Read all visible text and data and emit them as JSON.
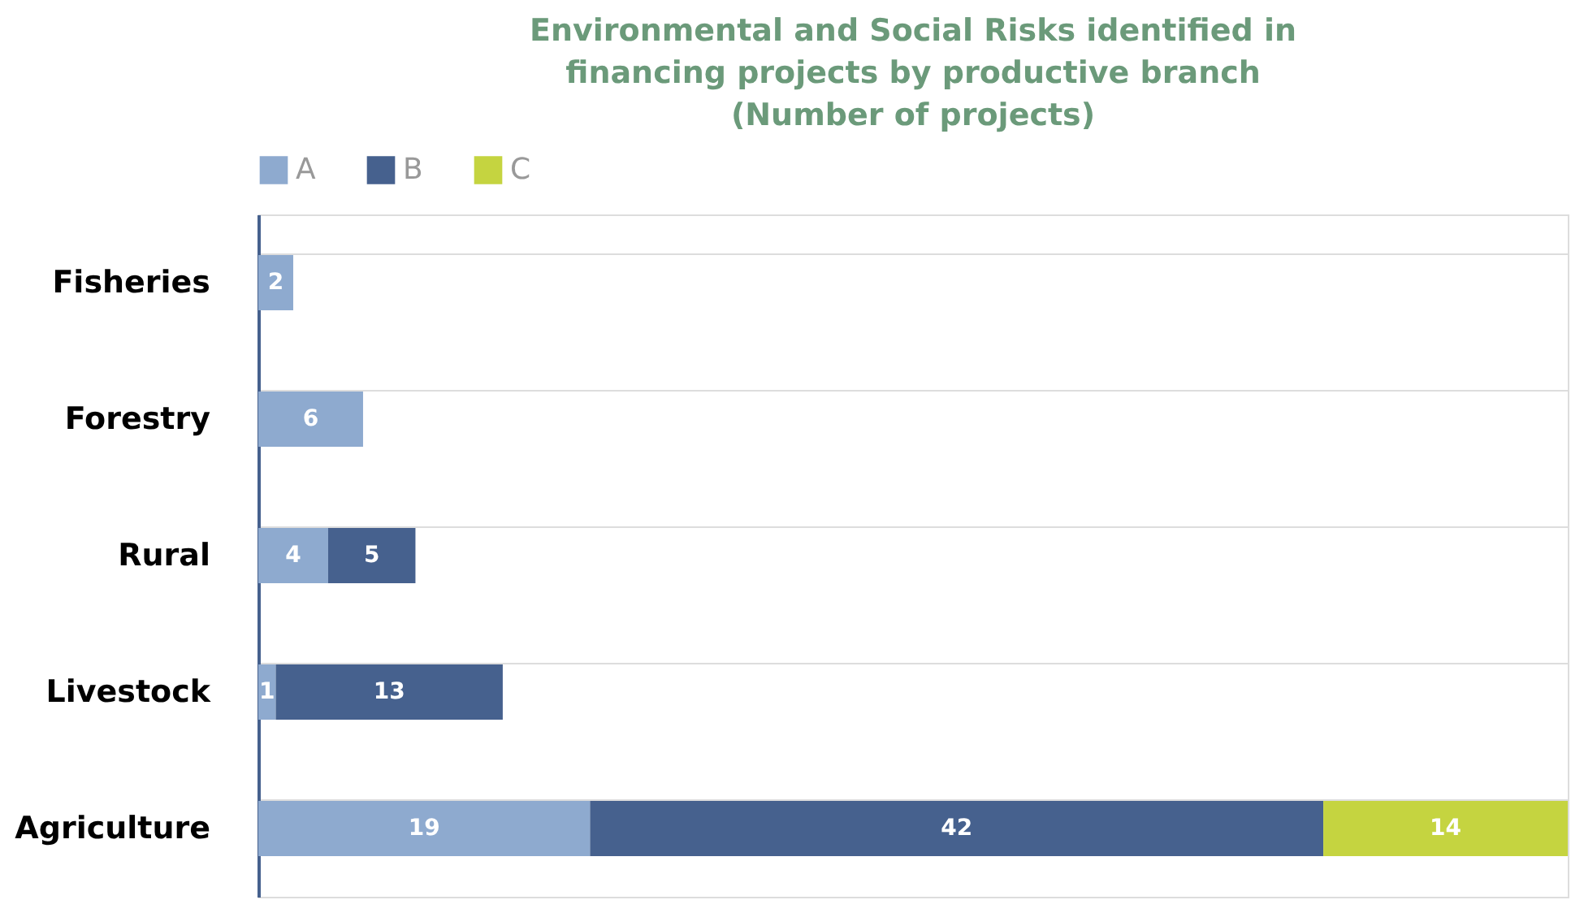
{
  "chart_data": {
    "type": "bar",
    "orientation": "horizontal",
    "stacked": true,
    "title": "Environmental and Social Risks identified in financing projects by productive branch (Number of projects)",
    "categories": [
      "Fisheries",
      "Forestry",
      "Rural",
      "Livestock",
      "Agriculture"
    ],
    "series": [
      {
        "name": "A",
        "color": "#8eaacf",
        "values": [
          2,
          6,
          4,
          1,
          19
        ]
      },
      {
        "name": "B",
        "color": "#46618e",
        "values": [
          null,
          null,
          5,
          13,
          42
        ]
      },
      {
        "name": "C",
        "color": "#c5d440",
        "values": [
          null,
          null,
          null,
          null,
          14
        ]
      }
    ],
    "data_labels": true,
    "legend": "top",
    "grid": "y"
  }
}
